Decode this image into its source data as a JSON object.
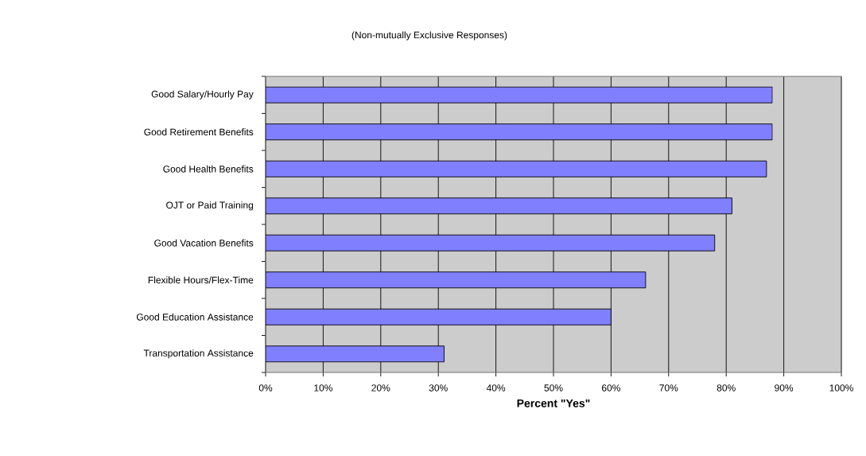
{
  "chart_data": {
    "type": "bar",
    "orientation": "horizontal",
    "subtitle": "(Non-mutually Exclusive Responses)",
    "xlabel": "Percent \"Yes\"",
    "categories": [
      "Good Salary/Hourly Pay",
      "Good Retirement Benefits",
      "Good Health Benefits",
      "OJT or Paid Training",
      "Good Vacation Benefits",
      "Flexible Hours/Flex-Time",
      "Good Education Assistance",
      "Transportation Assistance"
    ],
    "values": [
      88,
      88,
      87,
      81,
      78,
      66,
      60,
      31
    ],
    "color": "#8080ff",
    "xlim": [
      0,
      100
    ],
    "xticks": [
      {
        "value": 0,
        "label": "0%"
      },
      {
        "value": 10,
        "label": "10%"
      },
      {
        "value": 20,
        "label": "20%"
      },
      {
        "value": 30,
        "label": "30%"
      },
      {
        "value": 40,
        "label": "40%"
      },
      {
        "value": 50,
        "label": "50%"
      },
      {
        "value": 60,
        "label": "60%"
      },
      {
        "value": 70,
        "label": "70%"
      },
      {
        "value": 80,
        "label": "80%"
      },
      {
        "value": 90,
        "label": "90%"
      },
      {
        "value": 100,
        "label": "100%"
      }
    ],
    "grid": "x"
  }
}
